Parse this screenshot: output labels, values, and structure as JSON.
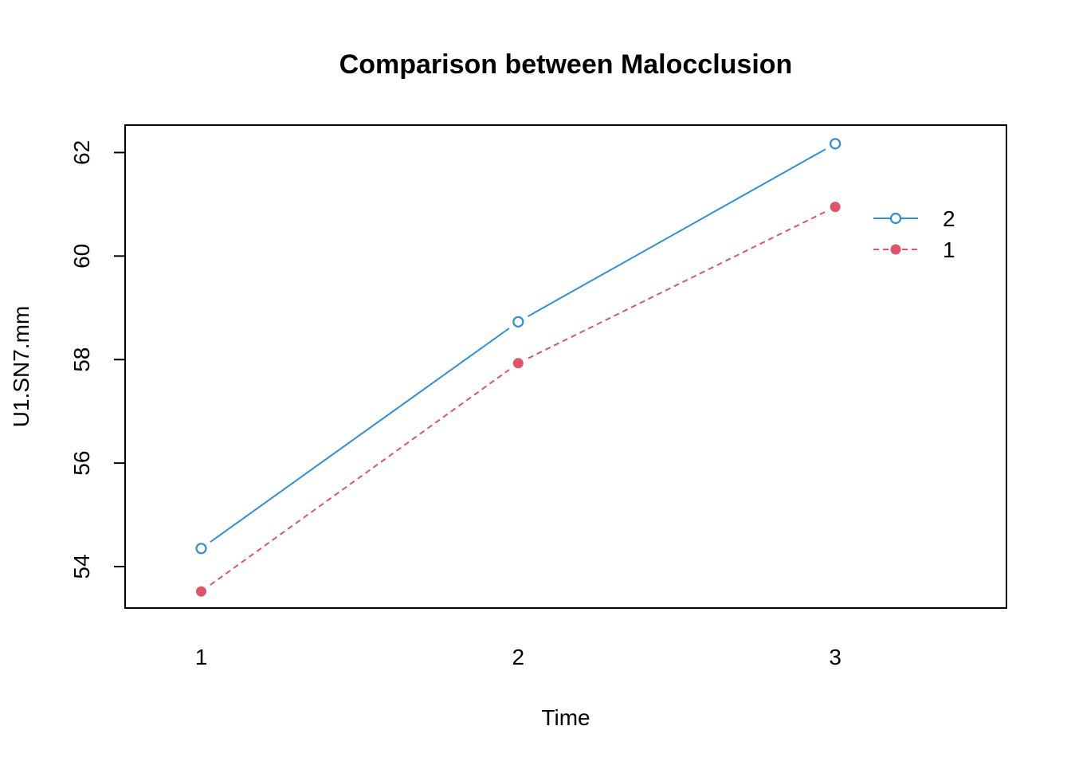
{
  "chart_data": {
    "type": "line",
    "title": "Comparison between Malocclusion",
    "xlabel": "Time",
    "ylabel": "U1.SN7.mm",
    "categories": [
      "1",
      "2",
      "3"
    ],
    "x": [
      1,
      2,
      3
    ],
    "xlim": [
      0.76,
      3.54
    ],
    "ylim": [
      53.2,
      62.53
    ],
    "yticks": [
      54,
      56,
      58,
      60,
      62
    ],
    "grid": false,
    "legend_position": "top-right",
    "series": [
      {
        "name": "2",
        "values": [
          54.35,
          58.73,
          62.17
        ],
        "color": "#2e8fd8",
        "line_style": "solid",
        "marker": "open-circle"
      },
      {
        "name": "1",
        "values": [
          53.52,
          57.93,
          60.95
        ],
        "color": "#df536b",
        "line_style": "dashed",
        "marker": "filled-circle"
      }
    ]
  }
}
